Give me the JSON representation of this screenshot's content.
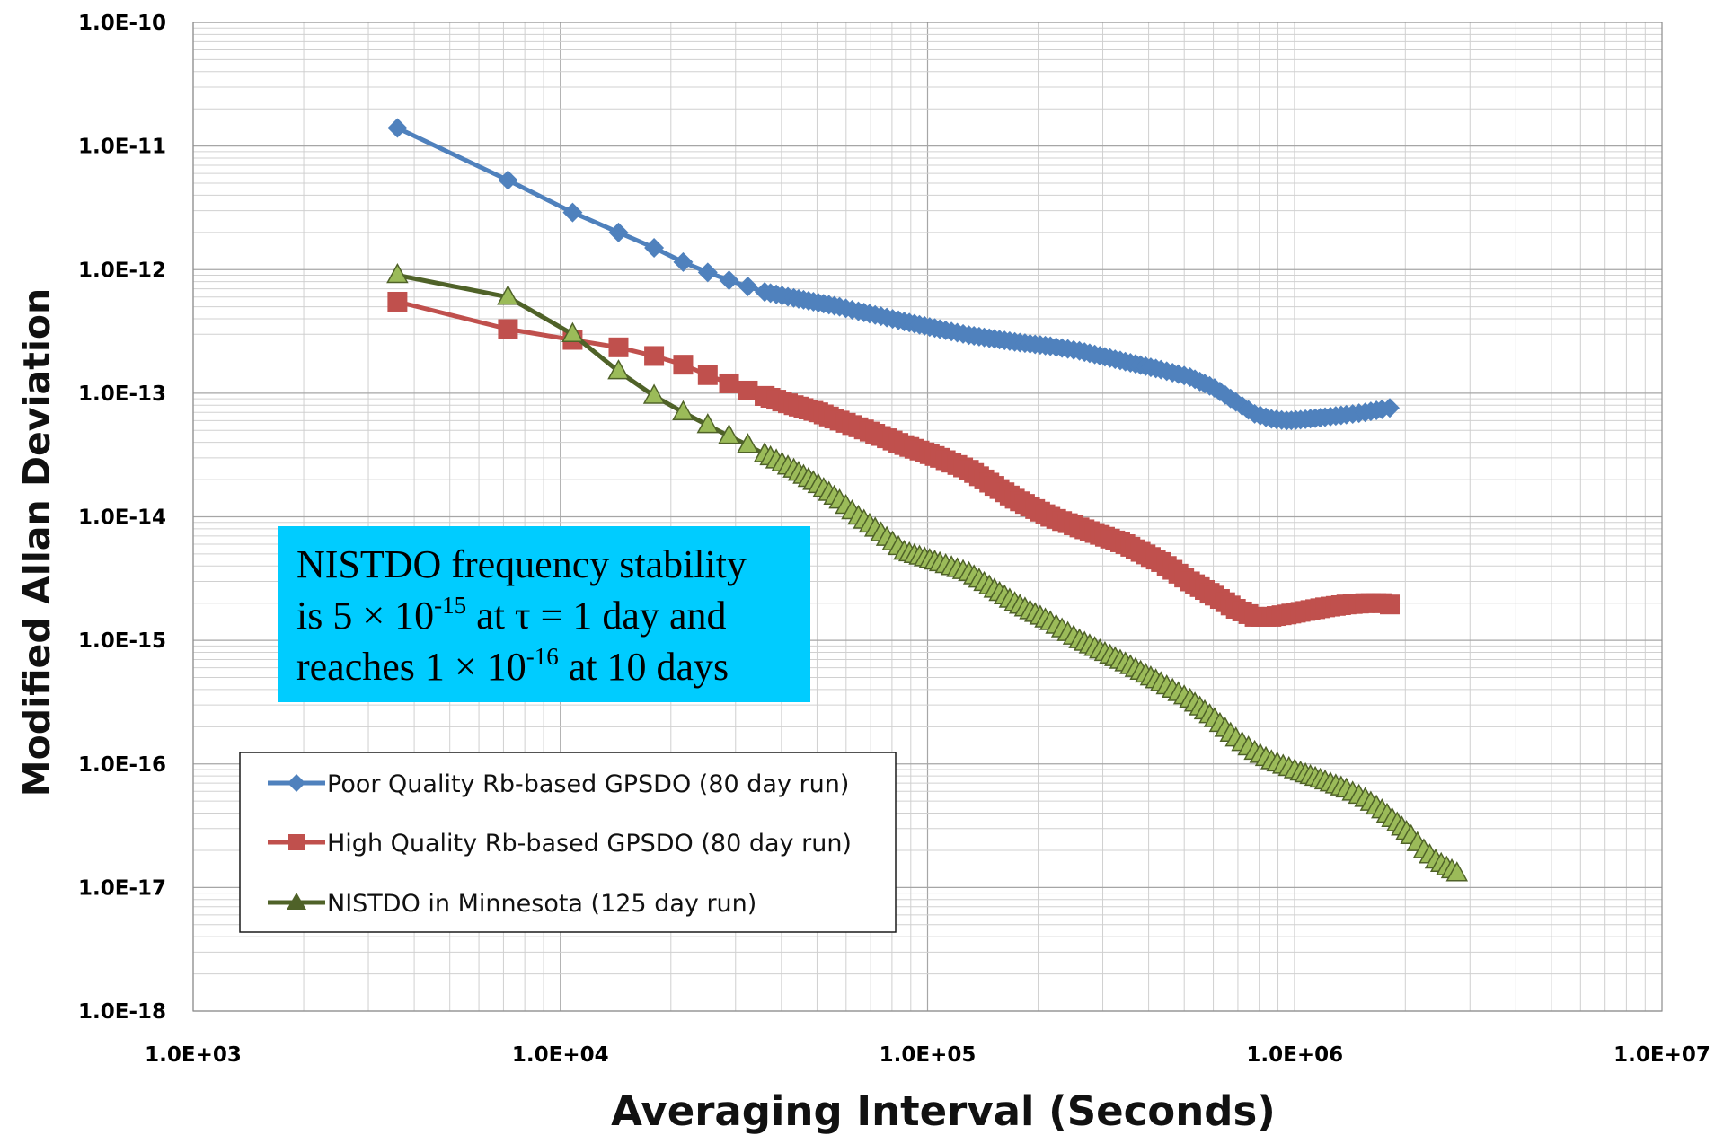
{
  "chart_data": {
    "type": "line",
    "title": "",
    "xlabel": "Averaging Interval (Seconds)",
    "ylabel": "Modified Allan Deviation",
    "xscale": "log",
    "yscale": "log",
    "xlim": [
      1000,
      10000000
    ],
    "ylim": [
      1e-18,
      1e-10
    ],
    "grid": true,
    "x_tick_labels": [
      "1.0E+03",
      "1.0E+04",
      "1.0E+05",
      "1.0E+06",
      "1.0E+07"
    ],
    "y_tick_labels": [
      "1.0E-10",
      "1.0E-11",
      "1.0E-12",
      "1.0E-13",
      "1.0E-14",
      "1.0E-15",
      "1.0E-16",
      "1.0E-17",
      "1.0E-18"
    ],
    "legend_position": "bottom-left",
    "series": [
      {
        "name": "Poor Quality Rb-based GPSDO (80 day run)",
        "color": "#4f81bd",
        "marker": "diamond",
        "x": [
          3600,
          7200,
          10800,
          14400,
          18000,
          21600,
          25200,
          28800,
          32400,
          36000,
          43200,
          50400,
          57600,
          64800,
          72000,
          86400,
          108000,
          129600,
          172800,
          216000,
          259200,
          345600,
          432000,
          518400,
          604800,
          691200,
          777600,
          864000,
          950400,
          1036800,
          1209600,
          1382400,
          1555200,
          1728000,
          1814400
        ],
        "y": [
          1.4e-11,
          5.3e-12,
          2.9e-12,
          2e-12,
          1.5e-12,
          1.15e-12,
          9.5e-13,
          8.2e-13,
          7.3e-13,
          6.6e-13,
          5.9e-13,
          5.4e-13,
          5e-13,
          4.6e-13,
          4.3e-13,
          3.8e-13,
          3.3e-13,
          2.95e-13,
          2.6e-13,
          2.4e-13,
          2.2e-13,
          1.8e-13,
          1.55e-13,
          1.35e-13,
          1.1e-13,
          8.5e-14,
          6.8e-14,
          6.2e-14,
          6e-14,
          6.1e-14,
          6.4e-14,
          6.7e-14,
          7e-14,
          7.4e-14,
          7.6e-14
        ]
      },
      {
        "name": "High Quality Rb-based GPSDO (80 day run)",
        "color": "#c0504d",
        "marker": "square",
        "x": [
          3600,
          7200,
          10800,
          14400,
          18000,
          21600,
          25200,
          28800,
          32400,
          36000,
          43200,
          50400,
          57600,
          64800,
          72000,
          86400,
          108000,
          129600,
          172800,
          216000,
          259200,
          345600,
          432000,
          518400,
          604800,
          691200,
          777600,
          864000,
          950400,
          1036800,
          1209600,
          1382400,
          1555200,
          1728000,
          1814400
        ],
        "y": [
          5.5e-13,
          3.3e-13,
          2.7e-13,
          2.35e-13,
          2e-13,
          1.7e-13,
          1.4e-13,
          1.2e-13,
          1.05e-13,
          9.5e-14,
          8e-14,
          7e-14,
          6e-14,
          5.3e-14,
          4.7e-14,
          3.8e-14,
          3e-14,
          2.4e-14,
          1.4e-14,
          1e-14,
          8.2e-15,
          6e-15,
          4.3e-15,
          3e-15,
          2.3e-15,
          1.8e-15,
          1.55e-15,
          1.55e-15,
          1.62e-15,
          1.7e-15,
          1.85e-15,
          1.95e-15,
          2e-15,
          2e-15,
          1.95e-15
        ]
      },
      {
        "name": "NISTDO in Minnesota (125 day run)",
        "color": "#4f6228",
        "marker_fill": "#9bbb59",
        "marker": "triangle",
        "x": [
          3600,
          7200,
          10800,
          14400,
          18000,
          21600,
          25200,
          28800,
          32400,
          36000,
          43200,
          50400,
          57600,
          64800,
          72000,
          86400,
          108000,
          129600,
          172800,
          216000,
          259200,
          345600,
          432000,
          518400,
          604800,
          691200,
          777600,
          864000,
          1036800,
          1209600,
          1382400,
          1555200,
          1728000,
          1900800,
          2073600,
          2246400,
          2419200,
          2592000,
          2764800
        ],
        "y": [
          9e-13,
          6e-13,
          3e-13,
          1.5e-13,
          9.5e-14,
          7e-14,
          5.5e-14,
          4.5e-14,
          3.8e-14,
          3.2e-14,
          2.4e-14,
          1.8e-14,
          1.35e-14,
          1e-14,
          8e-15,
          5.2e-15,
          4.2e-15,
          3.5e-15,
          2e-15,
          1.4e-15,
          1e-15,
          6.5e-16,
          4.5e-16,
          3.3e-16,
          2.3e-16,
          1.6e-16,
          1.25e-16,
          1.05e-16,
          8.5e-17,
          7.2e-17,
          6.2e-17,
          5.2e-17,
          4.2e-17,
          3.3e-17,
          2.6e-17,
          2e-17,
          1.65e-17,
          1.45e-17,
          1.3e-17
        ]
      }
    ],
    "annotation": {
      "line1": "NISTDO frequency stability",
      "line2_a": "is 5 × 10",
      "line2_exp": "-15",
      "line2_b": " at τ = 1 day and",
      "line3_a": "reaches 1 × 10",
      "line3_exp": "-16",
      "line3_b": " at 10 days",
      "background": "#00ccff"
    }
  }
}
